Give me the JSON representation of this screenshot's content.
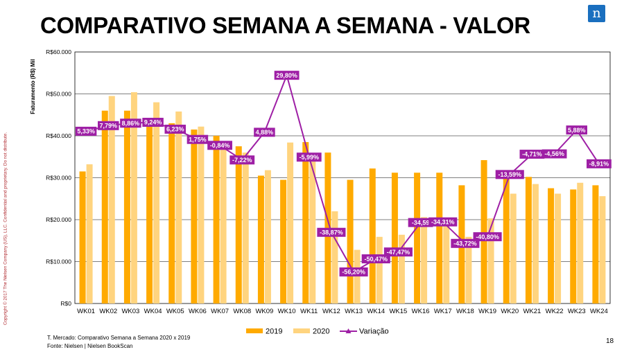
{
  "title": "COMPARATIVO SEMANA A SEMANA -  VALOR",
  "copyright": "Copyright © 2017 The Nielsen Company (US), LLC. Confidential and proprietary. Do not distribute.",
  "logo_letter": "n",
  "footnote1": "T. Mercado: Comparativo Semana a Semana 2020 x 2019",
  "footnote2": "Fonte: Nielsen | Nielsen BookScan",
  "page_number": "18",
  "colors": {
    "s2019": "#ffaa00",
    "s2020": "#ffd47f",
    "variacao": "#9e1fa5",
    "title": "#000000",
    "copyright": "#b02a30",
    "logo": "#1a6fbf"
  },
  "chart_data": {
    "type": "bar",
    "categories": [
      "WK01",
      "WK02",
      "WK03",
      "WK04",
      "WK05",
      "WK06",
      "WK07",
      "WK08",
      "WK09",
      "WK10",
      "WK11",
      "WK12",
      "WK13",
      "WK14",
      "WK15",
      "WK16",
      "WK17",
      "WK18",
      "WK19",
      "WK20",
      "WK21",
      "WK22",
      "WK23",
      "WK24"
    ],
    "ylabel": "Faturamento (R$) Mil",
    "ylim": [
      0,
      60000
    ],
    "yticks": [
      "R$0",
      "R$10.000",
      "R$20.000",
      "R$30.000",
      "R$40.000",
      "R$50.000",
      "R$60.000"
    ],
    "grid": true,
    "legend_position": "bottom",
    "series": [
      {
        "name": "2019",
        "values": [
          31500,
          46000,
          46000,
          44000,
          43000,
          41500,
          40000,
          37500,
          30500,
          29500,
          38500,
          36000,
          29500,
          32200,
          31200,
          31200,
          31200,
          28200,
          34200,
          30300,
          30200,
          27500,
          27200,
          28200
        ]
      },
      {
        "name": "2020",
        "values": [
          33200,
          49500,
          50400,
          48000,
          45800,
          42200,
          37000,
          36000,
          31800,
          38400,
          35000,
          22000,
          12800,
          15900,
          16400,
          20600,
          20500,
          15900,
          20300,
          26200,
          28500,
          26200,
          28800,
          25600
        ]
      }
    ],
    "line_series": {
      "name": "Variação",
      "values": [
        5.33,
        7.79,
        8.86,
        9.24,
        6.23,
        1.75,
        -0.84,
        -7.22,
        4.88,
        29.8,
        -5.99,
        -38.87,
        -56.2,
        -50.47,
        -47.47,
        -34.59,
        -34.31,
        -43.72,
        -40.8,
        -13.59,
        -4.71,
        -4.56,
        5.88,
        -8.91
      ],
      "labels": [
        "5,33%",
        "7,79%",
        "8,86%",
        "9,24%",
        "6,23%",
        "1,75%",
        "-0,84%",
        "-7,22%",
        "4,88%",
        "29,80%",
        "-5,99%",
        "-38,87%",
        "-56,20%",
        "-50,47%",
        "-47,47%",
        "-34,59",
        "-34,31%",
        "-43,72%",
        "-40,80%",
        "-13,59%",
        "-4,71%",
        "-4,56%",
        "5,88%",
        "-8,91%"
      ],
      "range": [
        -70,
        40
      ]
    }
  }
}
